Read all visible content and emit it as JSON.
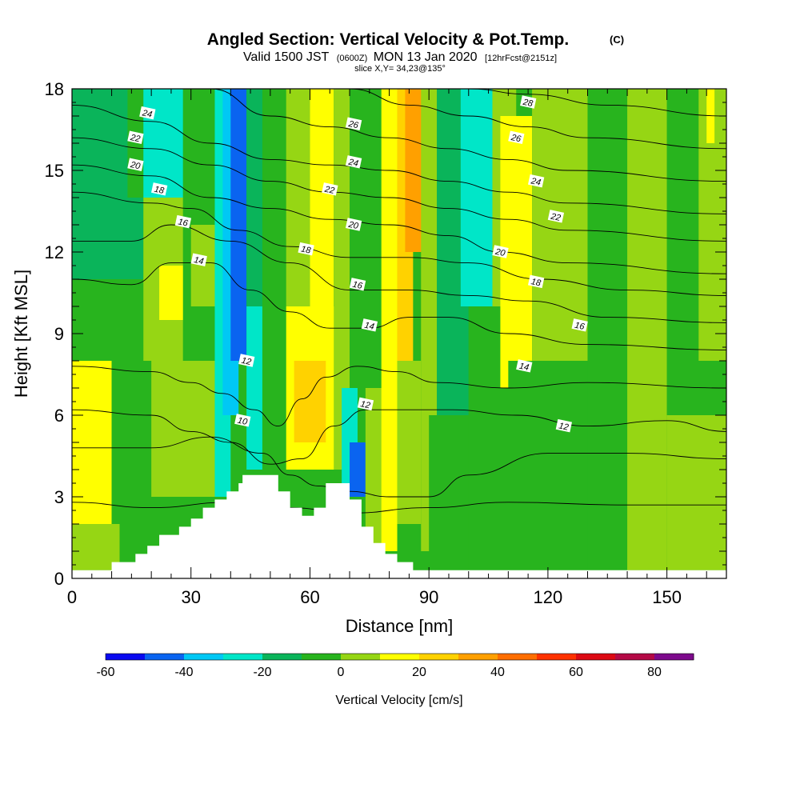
{
  "title": {
    "main": "Angled Section: Vertical Velocity & Pot.Temp.",
    "unit": "(C)",
    "valid_pre": "Valid 1500 JST",
    "valid_z": "(0600Z)",
    "valid_date": "MON 13 Jan 2020",
    "fcst": "[12hrFcst@2151z]",
    "slice": "slice X,Y= 34,23@135°"
  },
  "chart_data": {
    "type": "heatmap",
    "xlabel": "Distance [nm]",
    "ylabel": "Height [Kft MSL]",
    "xlim": [
      0,
      165
    ],
    "ylim": [
      0,
      18
    ],
    "xticks": [
      0,
      30,
      60,
      90,
      120,
      150
    ],
    "yticks": [
      0,
      3,
      6,
      9,
      12,
      15,
      18
    ],
    "colorbar": {
      "label": "Vertical Velocity [cm/s]",
      "min": -60,
      "max": 90,
      "step": 10,
      "tick_values": [
        -60,
        -40,
        -20,
        0,
        20,
        40,
        60,
        80
      ],
      "colors": [
        "#0a0af0",
        "#0a64f0",
        "#00c8f5",
        "#00e6c8",
        "#0ab45a",
        "#28b41e",
        "#96d614",
        "#ffff00",
        "#ffd200",
        "#ffa000",
        "#ff6e00",
        "#ff3200",
        "#dc0a14",
        "#b40a46",
        "#7d0a8c"
      ]
    },
    "velocity_cells": [
      {
        "x0": 0,
        "x1": 10,
        "y0": 2,
        "y1": 8,
        "value": 15
      },
      {
        "x0": 0,
        "x1": 12,
        "y0": 0.3,
        "y1": 2,
        "value": 5
      },
      {
        "x0": 0,
        "x1": 20,
        "y0": 8,
        "y1": 11,
        "value": -5
      },
      {
        "x0": 0,
        "x1": 18,
        "y0": 11,
        "y1": 18,
        "value": -15
      },
      {
        "x0": 10,
        "x1": 22,
        "y0": 2,
        "y1": 8,
        "value": -5
      },
      {
        "x0": 14,
        "x1": 22,
        "y0": 14,
        "y1": 18,
        "value": -5
      },
      {
        "x0": 20,
        "x1": 36,
        "y0": 3,
        "y1": 8,
        "value": 5
      },
      {
        "x0": 18,
        "x1": 28,
        "y0": 8,
        "y1": 14,
        "value": 5
      },
      {
        "x0": 22,
        "x1": 28,
        "y0": 9.5,
        "y1": 11.5,
        "value": 15
      },
      {
        "x0": 18,
        "x1": 28,
        "y0": 14,
        "y1": 18,
        "value": -25
      },
      {
        "x0": 28,
        "x1": 36,
        "y0": 8,
        "y1": 18,
        "value": -5
      },
      {
        "x0": 30,
        "x1": 38,
        "y0": 10,
        "y1": 13,
        "value": 5
      },
      {
        "x0": 36,
        "x1": 40,
        "y0": 3,
        "y1": 18,
        "value": -25
      },
      {
        "x0": 38,
        "x1": 42,
        "y0": 6,
        "y1": 18,
        "value": -35
      },
      {
        "x0": 40,
        "x1": 44,
        "y0": 8,
        "y1": 18,
        "value": -45
      },
      {
        "x0": 44,
        "x1": 48,
        "y0": 4,
        "y1": 10,
        "value": -25
      },
      {
        "x0": 44,
        "x1": 48,
        "y0": 10,
        "y1": 18,
        "value": -15
      },
      {
        "x0": 48,
        "x1": 54,
        "y0": 4,
        "y1": 18,
        "value": -5
      },
      {
        "x0": 54,
        "x1": 68,
        "y0": 4,
        "y1": 10,
        "value": 15
      },
      {
        "x0": 56,
        "x1": 64,
        "y0": 5,
        "y1": 8,
        "value": 25
      },
      {
        "x0": 54,
        "x1": 60,
        "y0": 10,
        "y1": 18,
        "value": 5
      },
      {
        "x0": 60,
        "x1": 66,
        "y0": 10,
        "y1": 18,
        "value": 15
      },
      {
        "x0": 66,
        "x1": 70,
        "y0": 4,
        "y1": 18,
        "value": 5
      },
      {
        "x0": 68,
        "x1": 72,
        "y0": 3,
        "y1": 7,
        "value": -25
      },
      {
        "x0": 70,
        "x1": 74,
        "y0": 3,
        "y1": 5,
        "value": -45
      },
      {
        "x0": 70,
        "x1": 78,
        "y0": 7,
        "y1": 18,
        "value": -5
      },
      {
        "x0": 74,
        "x1": 80,
        "y0": 1,
        "y1": 7,
        "value": 5
      },
      {
        "x0": 78,
        "x1": 82,
        "y0": 1,
        "y1": 18,
        "value": 15
      },
      {
        "x0": 82,
        "x1": 86,
        "y0": 8,
        "y1": 18,
        "value": 25
      },
      {
        "x0": 84,
        "x1": 90,
        "y0": 12,
        "y1": 18,
        "value": 35
      },
      {
        "x0": 82,
        "x1": 88,
        "y0": 2,
        "y1": 8,
        "value": 5
      },
      {
        "x0": 88,
        "x1": 92,
        "y0": 1,
        "y1": 18,
        "value": 5
      },
      {
        "x0": 90,
        "x1": 100,
        "y0": 0.3,
        "y1": 6,
        "value": -5
      },
      {
        "x0": 92,
        "x1": 100,
        "y0": 6,
        "y1": 18,
        "value": -15
      },
      {
        "x0": 98,
        "x1": 106,
        "y0": 10,
        "y1": 18,
        "value": -25
      },
      {
        "x0": 100,
        "x1": 110,
        "y0": 0.3,
        "y1": 10,
        "value": -5
      },
      {
        "x0": 106,
        "x1": 112,
        "y0": 10,
        "y1": 18,
        "value": 5
      },
      {
        "x0": 108,
        "x1": 116,
        "y0": 7,
        "y1": 17,
        "value": 15
      },
      {
        "x0": 116,
        "x1": 130,
        "y0": 8,
        "y1": 18,
        "value": 5
      },
      {
        "x0": 110,
        "x1": 130,
        "y0": 0.3,
        "y1": 8,
        "value": -5
      },
      {
        "x0": 130,
        "x1": 140,
        "y0": 0.3,
        "y1": 18,
        "value": -5
      },
      {
        "x0": 140,
        "x1": 150,
        "y0": 0.3,
        "y1": 18,
        "value": 5
      },
      {
        "x0": 150,
        "x1": 165,
        "y0": 0.3,
        "y1": 6,
        "value": 5
      },
      {
        "x0": 150,
        "x1": 165,
        "y0": 6,
        "y1": 18,
        "value": -5
      },
      {
        "x0": 158,
        "x1": 165,
        "y0": 8,
        "y1": 18,
        "value": 5
      },
      {
        "x0": 160,
        "x1": 162,
        "y0": 16,
        "y1": 18,
        "value": 15
      }
    ],
    "terrain": [
      [
        0,
        0.3
      ],
      [
        10,
        0.3
      ],
      [
        10,
        0.6
      ],
      [
        16,
        0.6
      ],
      [
        16,
        0.9
      ],
      [
        19,
        0.9
      ],
      [
        19,
        1.2
      ],
      [
        22,
        1.2
      ],
      [
        22,
        1.6
      ],
      [
        27,
        1.6
      ],
      [
        27,
        1.9
      ],
      [
        30,
        1.9
      ],
      [
        30,
        2.2
      ],
      [
        33,
        2.2
      ],
      [
        33,
        2.6
      ],
      [
        36,
        2.6
      ],
      [
        36,
        2.9
      ],
      [
        39,
        2.9
      ],
      [
        39,
        3.2
      ],
      [
        42,
        3.2
      ],
      [
        42,
        3.5
      ],
      [
        43,
        3.5
      ],
      [
        43,
        3.8
      ],
      [
        52,
        3.8
      ],
      [
        52,
        3.2
      ],
      [
        55,
        3.2
      ],
      [
        55,
        2.6
      ],
      [
        58,
        2.6
      ],
      [
        58,
        2.3
      ],
      [
        61,
        2.3
      ],
      [
        61,
        2.6
      ],
      [
        64,
        2.6
      ],
      [
        64,
        3.5
      ],
      [
        70,
        3.5
      ],
      [
        70,
        2.9
      ],
      [
        73,
        2.9
      ],
      [
        73,
        1.9
      ],
      [
        76,
        1.9
      ],
      [
        76,
        1.3
      ],
      [
        79,
        1.3
      ],
      [
        79,
        0.9
      ],
      [
        82,
        0.9
      ],
      [
        82,
        0.6
      ],
      [
        86,
        0.6
      ],
      [
        86,
        0.3
      ],
      [
        165,
        0.3
      ]
    ],
    "theta_contours": [
      {
        "label": "10",
        "points": [
          [
            0,
            2.8
          ],
          [
            20,
            2.6
          ],
          [
            40,
            2.8
          ],
          [
            55,
            2.6
          ],
          [
            70,
            2.4
          ],
          [
            90,
            2.6
          ],
          [
            110,
            2.8
          ],
          [
            140,
            2.7
          ],
          [
            165,
            2.7
          ]
        ]
      },
      {
        "label": "10",
        "points": [
          [
            0,
            4.8
          ],
          [
            20,
            4.8
          ],
          [
            35,
            5.2
          ],
          [
            48,
            4.6
          ],
          [
            55,
            3.8
          ],
          [
            62,
            3.4
          ],
          [
            70,
            3.2
          ],
          [
            80,
            3.0
          ],
          [
            90,
            3.0
          ],
          [
            100,
            3.8
          ],
          [
            120,
            4.6
          ],
          [
            140,
            4.6
          ],
          [
            165,
            4.4
          ]
        ]
      },
      {
        "label": "12",
        "points": [
          [
            0,
            6.2
          ],
          [
            20,
            6.0
          ],
          [
            30,
            5.4
          ],
          [
            40,
            5.0
          ],
          [
            50,
            4.2
          ],
          [
            58,
            4.4
          ],
          [
            66,
            5.6
          ],
          [
            74,
            6.2
          ],
          [
            84,
            6.2
          ],
          [
            96,
            6.2
          ],
          [
            112,
            6.0
          ],
          [
            130,
            5.6
          ],
          [
            150,
            5.8
          ],
          [
            165,
            5.4
          ]
        ]
      },
      {
        "label": "12",
        "points": [
          [
            0,
            7.8
          ],
          [
            20,
            7.6
          ],
          [
            30,
            7.2
          ],
          [
            38,
            6.8
          ],
          [
            46,
            6.2
          ],
          [
            52,
            5.6
          ],
          [
            58,
            6.6
          ],
          [
            64,
            7.4
          ],
          [
            72,
            7.8
          ],
          [
            82,
            7.6
          ],
          [
            92,
            7.2
          ],
          [
            110,
            7.0
          ],
          [
            130,
            7.2
          ],
          [
            165,
            7.0
          ]
        ]
      },
      {
        "label": "14",
        "points": [
          [
            0,
            11.0
          ],
          [
            15,
            10.8
          ],
          [
            25,
            11.6
          ],
          [
            35,
            11.6
          ],
          [
            45,
            10.6
          ],
          [
            55,
            9.8
          ],
          [
            65,
            9.2
          ],
          [
            75,
            9.2
          ],
          [
            85,
            9.6
          ],
          [
            95,
            9.6
          ],
          [
            110,
            9.0
          ],
          [
            130,
            8.6
          ],
          [
            165,
            8.4
          ]
        ]
      },
      {
        "label": "16",
        "points": [
          [
            0,
            12.4
          ],
          [
            15,
            12.4
          ],
          [
            25,
            13.0
          ],
          [
            40,
            12.4
          ],
          [
            55,
            11.6
          ],
          [
            70,
            10.6
          ],
          [
            85,
            10.6
          ],
          [
            100,
            10.4
          ],
          [
            115,
            10.2
          ],
          [
            135,
            9.6
          ],
          [
            165,
            9.4
          ]
        ]
      },
      {
        "label": "18",
        "points": [
          [
            0,
            14.2
          ],
          [
            20,
            13.8
          ],
          [
            30,
            13.6
          ],
          [
            42,
            12.8
          ],
          [
            55,
            12.2
          ],
          [
            70,
            11.8
          ],
          [
            85,
            11.8
          ],
          [
            100,
            11.6
          ],
          [
            118,
            11.0
          ],
          [
            140,
            10.6
          ],
          [
            165,
            10.4
          ]
        ]
      },
      {
        "label": "20",
        "points": [
          [
            0,
            15.2
          ],
          [
            20,
            14.8
          ],
          [
            35,
            14.0
          ],
          [
            50,
            13.6
          ],
          [
            65,
            13.2
          ],
          [
            80,
            13.0
          ],
          [
            95,
            12.6
          ],
          [
            108,
            12.0
          ],
          [
            125,
            11.6
          ],
          [
            165,
            11.2
          ]
        ]
      },
      {
        "label": "22",
        "points": [
          [
            0,
            16.2
          ],
          [
            20,
            15.8
          ],
          [
            35,
            15.2
          ],
          [
            50,
            14.6
          ],
          [
            65,
            14.2
          ],
          [
            80,
            14.0
          ],
          [
            95,
            13.6
          ],
          [
            110,
            13.2
          ],
          [
            125,
            12.8
          ],
          [
            165,
            12.4
          ]
        ]
      },
      {
        "label": "24",
        "points": [
          [
            0,
            17.4
          ],
          [
            20,
            16.8
          ],
          [
            35,
            16.0
          ],
          [
            50,
            15.4
          ],
          [
            65,
            15.2
          ],
          [
            80,
            15.0
          ],
          [
            95,
            14.6
          ],
          [
            110,
            14.2
          ],
          [
            125,
            13.8
          ],
          [
            165,
            13.4
          ]
        ]
      },
      {
        "label": "26",
        "points": [
          [
            35,
            18.0
          ],
          [
            50,
            17.0
          ],
          [
            65,
            16.6
          ],
          [
            80,
            16.2
          ],
          [
            95,
            15.8
          ],
          [
            110,
            15.4
          ],
          [
            125,
            15.0
          ],
          [
            165,
            14.6
          ]
        ]
      },
      {
        "label": "26",
        "points": [
          [
            70,
            18.0
          ],
          [
            85,
            17.4
          ],
          [
            100,
            17.0
          ],
          [
            115,
            16.6
          ],
          [
            130,
            16.2
          ],
          [
            165,
            15.8
          ]
        ]
      },
      {
        "label": "28",
        "points": [
          [
            100,
            18.0
          ],
          [
            115,
            17.8
          ],
          [
            135,
            17.4
          ],
          [
            165,
            17.0
          ]
        ]
      }
    ],
    "contour_labels": [
      {
        "text": "24",
        "x": 19,
        "y": 17.1
      },
      {
        "text": "22",
        "x": 16,
        "y": 16.2
      },
      {
        "text": "20",
        "x": 16,
        "y": 15.2
      },
      {
        "text": "18",
        "x": 22,
        "y": 14.3
      },
      {
        "text": "16",
        "x": 28,
        "y": 13.1
      },
      {
        "text": "14",
        "x": 32,
        "y": 11.7
      },
      {
        "text": "12",
        "x": 44,
        "y": 8.0
      },
      {
        "text": "10",
        "x": 43,
        "y": 5.8
      },
      {
        "text": "26",
        "x": 71,
        "y": 16.7
      },
      {
        "text": "24",
        "x": 71,
        "y": 15.3
      },
      {
        "text": "22",
        "x": 65,
        "y": 14.3
      },
      {
        "text": "20",
        "x": 71,
        "y": 13.0
      },
      {
        "text": "18",
        "x": 59,
        "y": 12.1
      },
      {
        "text": "16",
        "x": 72,
        "y": 10.8
      },
      {
        "text": "14",
        "x": 75,
        "y": 9.3
      },
      {
        "text": "12",
        "x": 74,
        "y": 6.4
      },
      {
        "text": "28",
        "x": 115,
        "y": 17.5
      },
      {
        "text": "26",
        "x": 112,
        "y": 16.2
      },
      {
        "text": "24",
        "x": 117,
        "y": 14.6
      },
      {
        "text": "22",
        "x": 122,
        "y": 13.3
      },
      {
        "text": "20",
        "x": 108,
        "y": 12.0
      },
      {
        "text": "18",
        "x": 117,
        "y": 10.9
      },
      {
        "text": "16",
        "x": 128,
        "y": 9.3
      },
      {
        "text": "14",
        "x": 114,
        "y": 7.8
      },
      {
        "text": "12",
        "x": 124,
        "y": 5.6
      }
    ]
  }
}
